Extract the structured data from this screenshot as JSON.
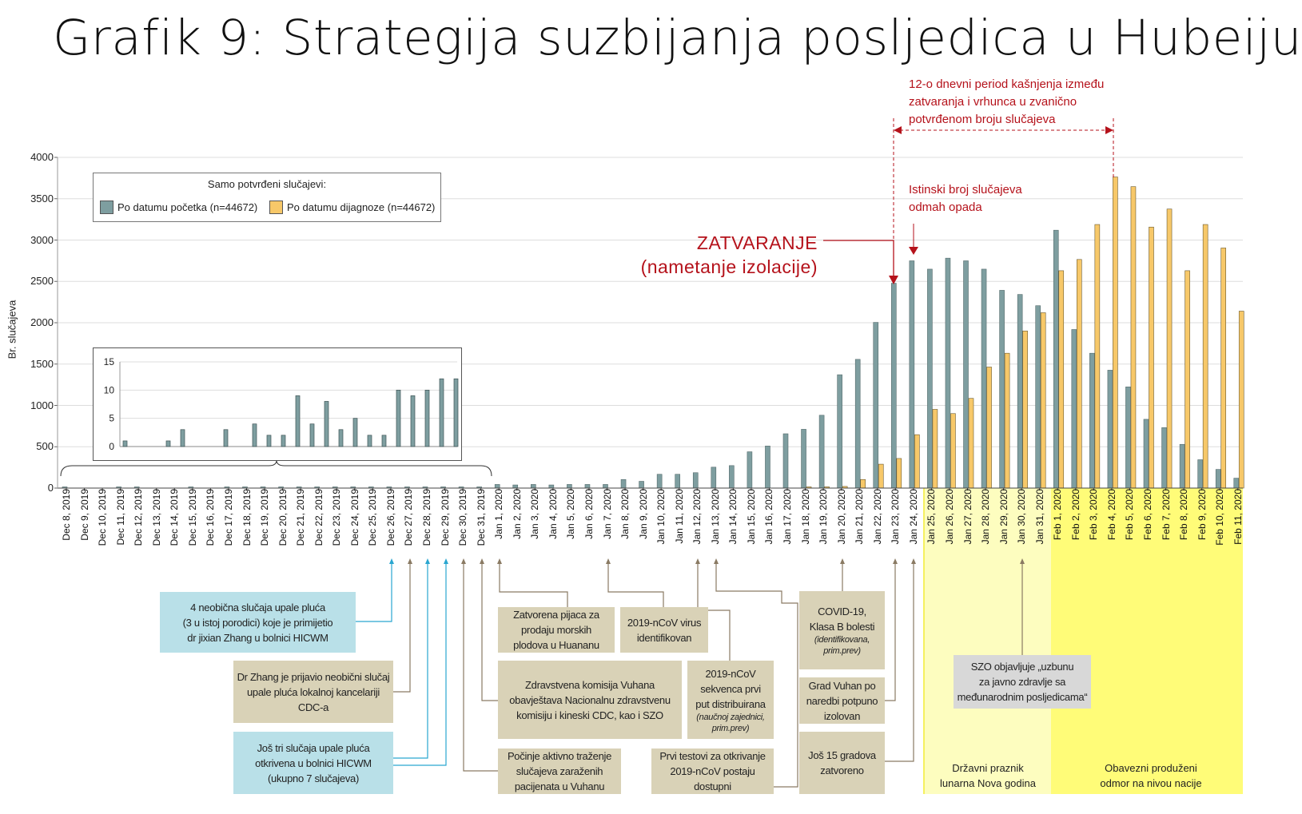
{
  "title": "Grafik 9: Strategija suzbijanja posljedica u Hubeiju",
  "colors": {
    "onset": "#7e9ea0",
    "diagnosis": "#f7c869",
    "red": "#b5121b",
    "tan": "#d9d2b7",
    "blue": "#b9e0e8",
    "light_yellow": "#fdfdbf",
    "yellow": "#fffc78"
  },
  "legend": {
    "title": "Samo potvrđeni slučajevi:",
    "items": [
      {
        "label": "Po datumu početka (n=44672)",
        "color": "#7e9ea0"
      },
      {
        "label": "Po datumu dijagnoze (n=44672)",
        "color": "#f7c869"
      }
    ]
  },
  "annotations_red": {
    "delay": [
      "12-o dnevni period kašnjenja između",
      "zatvaranja i vrhunca u zvanično",
      "potvrđenom broju slučajeva"
    ],
    "true_cases": [
      "Istinski broj slučajeva",
      "odmah opada"
    ],
    "lockdown": "ZATVARANJE",
    "lockdown_sub": "(nametanje izolacije)"
  },
  "events": [
    {
      "lines": [
        "4 neobična slučaja upale pluća",
        "(3 u istoj porodici) koje je primijetio",
        "dr jixian Zhang u bolnici HICWM"
      ]
    },
    {
      "lines": [
        "Dr Zhang je prijavio neobični slučaj",
        "upale pluća lokalnoj kancelariji",
        "CDC-a"
      ]
    },
    {
      "lines": [
        "Još tri slučaja upale pluća",
        "otkrivena u bolnici HICWM",
        "(ukupno 7 slučajeva)"
      ]
    },
    {
      "lines": [
        "Zatvorena pijaca za",
        "prodaju morskih",
        "plodova u Huananu"
      ]
    },
    {
      "lines": [
        "2019-nCoV virus",
        "identifikovan"
      ]
    },
    {
      "lines": [
        "Zdravstvena komisija Vuhana",
        "obavještava Nacionalnu zdravstvenu",
        "komisiju i kineski CDC, kao i SZO"
      ]
    },
    {
      "lines": [
        "2019-nCoV",
        "sekvenca prvi",
        "put distribuirana"
      ],
      "note": [
        "(naučnoj zajednici,",
        "prim.prev)"
      ]
    },
    {
      "lines": [
        "Počinje aktivno traženje",
        "slučajeva zaraženih",
        "pacijenata u Vuhanu"
      ]
    },
    {
      "lines": [
        "Prvi testovi za otkrivanje",
        "2019-nCoV postaju",
        "dostupni"
      ]
    },
    {
      "lines": [
        "COVID-19,",
        "Klasa B bolesti"
      ],
      "note": [
        "(identifikovana,",
        "prim.prev)"
      ]
    },
    {
      "lines": [
        "Grad Vuhan po",
        "naredbi potpuno",
        "izolovan"
      ]
    },
    {
      "lines": [
        "Još 15 gradova",
        "zatvoreno"
      ]
    },
    {
      "lines": [
        "SZO objavljuje „uzbunu",
        "za javno zdravlje sa",
        "međunarodnim posljedicama“"
      ]
    }
  ],
  "bands": {
    "holiday": [
      "Državni praznik",
      "lunarna Nova godina"
    ],
    "extended": [
      "Obavezni produženi",
      "odmor na nivou nacije"
    ]
  },
  "chart_data": {
    "type": "bar",
    "title": "Grafik 9: Strategija suzbijanja posljedica u Hubeiju",
    "xlabel": "",
    "ylabel": "Br. slučajeva",
    "ylim": [
      0,
      4000
    ],
    "yticks": [
      "0",
      "500",
      "1000",
      "1500",
      "2000",
      "2500",
      "3000",
      "3500",
      "4000"
    ],
    "grid": true,
    "legend_position": "top-left",
    "categories": [
      "Dec 8, 2019",
      "Dec 9, 2019",
      "Dec 10, 2019",
      "Dec 11, 2019",
      "Dec 12, 2019",
      "Dec 13, 2019",
      "Dec 14, 2019",
      "Dec 15, 2019",
      "Dec 16, 2019",
      "Dec 17, 2019",
      "Dec 18, 2019",
      "Dec 19, 2019",
      "Dec 20, 2019",
      "Dec 21, 2019",
      "Dec 22, 2019",
      "Dec 23, 2019",
      "Dec 24, 2019",
      "Dec 25, 2019",
      "Dec 26, 2019",
      "Dec 27, 2019",
      "Dec 28, 2019",
      "Dec 29, 2019",
      "Dec 30, 2019",
      "Dec 31, 2019",
      "Jan 1, 2020",
      "Jan 2, 2020",
      "Jan 3, 2020",
      "Jan 4, 2020",
      "Jan 5, 2020",
      "Jan 6, 2020",
      "Jan 7, 2020",
      "Jan 8, 2020",
      "Jan 9, 2020",
      "Jan 10, 2020",
      "Jan 11, 2020",
      "Jan 12, 2020",
      "Jan 13, 2020",
      "Jan 14, 2020",
      "Jan 15, 2020",
      "Jan 16, 2020",
      "Jan 17, 2020",
      "Jan 18, 2020",
      "Jan 19, 2020",
      "Jan 20, 2020",
      "Jan 21, 2020",
      "Jan 22, 2020",
      "Jan 23, 2020",
      "Jan 24, 2020",
      "Jan 25, 2020",
      "Jan 26, 2020",
      "Jan 27, 2020",
      "Jan 28, 2020",
      "Jan 29, 2020",
      "Jan 30, 2020",
      "Jan 31, 2020",
      "Feb 1, 2020",
      "Feb 2, 2020",
      "Feb 3, 2020",
      "Feb 4, 2020",
      "Feb 5, 2020",
      "Feb 6, 2020",
      "Feb 7, 2020",
      "Feb 8, 2020",
      "Feb 9, 2020",
      "Feb 10, 2020",
      "Feb 11, 2020"
    ],
    "series": [
      {
        "name": "Po datumu početka (n=44672)",
        "values": [
          1,
          0,
          0,
          1,
          3,
          0,
          0,
          3,
          0,
          4,
          2,
          2,
          9,
          4,
          8,
          3,
          5,
          2,
          2,
          10,
          9,
          10,
          12,
          12,
          44,
          38,
          44,
          38,
          44,
          44,
          44,
          104,
          82,
          167,
          167,
          186,
          253,
          272,
          439,
          509,
          657,
          711,
          881,
          1371,
          1557,
          2004,
          2478,
          2749,
          2648,
          2781,
          2749,
          2648,
          2392,
          2342,
          2206,
          3119,
          1918,
          1631,
          1426,
          1224,
          832,
          731,
          529,
          343,
          226,
          120
        ]
      },
      {
        "name": "Po datumu dijagnoze (n=44672)",
        "values": [
          0,
          0,
          0,
          0,
          0,
          0,
          0,
          0,
          0,
          0,
          0,
          0,
          0,
          0,
          0,
          0,
          0,
          0,
          0,
          0,
          0,
          0,
          0,
          0,
          0,
          0,
          0,
          0,
          0,
          0,
          0,
          0,
          0,
          0,
          0,
          0,
          0,
          0,
          0,
          0,
          0,
          10,
          15,
          20,
          104,
          289,
          358,
          646,
          952,
          901,
          1085,
          1464,
          1631,
          1900,
          2121,
          2629,
          2765,
          3188,
          3763,
          3646,
          3157,
          3375,
          2629,
          3188,
          2904,
          2140
        ]
      }
    ],
    "inset": {
      "ylim": [
        0,
        15
      ],
      "yticks": [
        "0",
        "5",
        "10",
        "15"
      ],
      "range": [
        "Dec 8, 2019",
        "Dec 31, 2019"
      ]
    }
  }
}
